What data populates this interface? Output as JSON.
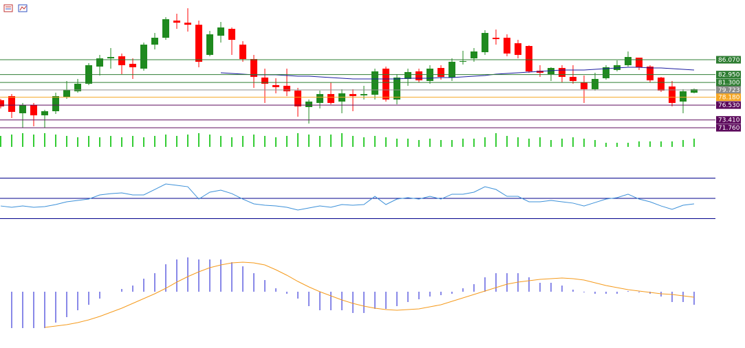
{
  "chart_data": [
    {
      "type": "candlestick",
      "up_color": "#1f8a1f",
      "down_color": "#ff0000",
      "ylim": [
        71.2,
        98.64
      ],
      "open": [
        77.55,
        78.42,
        74.81,
        76.54,
        74.38,
        75.24,
        78.28,
        79.43,
        81.02,
        84.63,
        86.36,
        86.8,
        85.21,
        84.2,
        89.25,
        90.7,
        94.31,
        93.87,
        93.44,
        87.09,
        91.13,
        92.57,
        89.25,
        86.22,
        82.32,
        80.73,
        80.59,
        79.58,
        76.11,
        76.98,
        78.85,
        77.27,
        78.85,
        78.57,
        78.71,
        84.2,
        77.7,
        82.03,
        83.62,
        81.6,
        84.34,
        82.32,
        85.64,
        86.36,
        87.66,
        90.7,
        90.7,
        89.54,
        88.96,
        83.76,
        83.04,
        84.34,
        82.46,
        81.31,
        79.87,
        82.18,
        83.91,
        84.92,
        86.51,
        84.63,
        82.32,
        80.44,
        77.27,
        79.14
      ],
      "high": [
        77.84,
        78.85,
        76.98,
        76.98,
        75.53,
        79.14,
        81.6,
        82.03,
        85.35,
        87.09,
        88.53,
        87.38,
        86.36,
        89.69,
        91.71,
        95.03,
        95.75,
        96.91,
        94.31,
        92.14,
        94.02,
        92.86,
        89.97,
        87.09,
        84.2,
        82.18,
        84.2,
        80.15,
        77.7,
        79.58,
        81.31,
        79.87,
        79.87,
        80.59,
        84.2,
        84.63,
        83.04,
        84.2,
        84.2,
        84.92,
        84.92,
        86.36,
        87.95,
        88.53,
        92.29,
        92.43,
        91.42,
        90.26,
        89.11,
        84.92,
        84.49,
        84.92,
        84.92,
        82.75,
        83.33,
        84.92,
        85.93,
        87.81,
        86.51,
        84.92,
        82.46,
        81.6,
        79.87,
        80.01
      ],
      "low": [
        75.82,
        73.8,
        71.78,
        72.07,
        71.78,
        74.67,
        77.84,
        79.14,
        80.73,
        82.75,
        84.2,
        83.04,
        82.03,
        83.76,
        88.24,
        90.26,
        92.57,
        92.0,
        84.49,
        86.8,
        89.69,
        87.09,
        85.64,
        80.15,
        76.98,
        79.0,
        78.42,
        74.09,
        72.64,
        75.82,
        76.69,
        74.81,
        75.24,
        77.7,
        77.7,
        77.27,
        76.69,
        80.59,
        81.31,
        81.02,
        81.89,
        81.6,
        85.06,
        85.64,
        87.09,
        89.25,
        86.8,
        86.36,
        83.33,
        82.46,
        81.6,
        81.31,
        81.02,
        76.98,
        79.58,
        81.89,
        83.62,
        84.63,
        83.91,
        81.31,
        79.29,
        76.25,
        74.81,
        79.0
      ],
      "close": [
        76.25,
        75.1,
        76.54,
        74.38,
        75.24,
        78.42,
        79.72,
        81.02,
        84.92,
        86.36,
        86.65,
        84.92,
        84.49,
        89.25,
        90.7,
        94.6,
        93.87,
        93.44,
        85.64,
        91.42,
        92.86,
        90.26,
        86.22,
        82.46,
        81.02,
        80.3,
        79.43,
        76.25,
        77.27,
        78.85,
        76.98,
        79.0,
        78.42,
        78.85,
        83.62,
        77.7,
        82.32,
        83.48,
        81.74,
        84.2,
        82.46,
        85.64,
        85.79,
        87.81,
        91.71,
        90.41,
        87.38,
        87.09,
        83.62,
        83.33,
        84.34,
        82.46,
        81.6,
        79.87,
        82.03,
        84.49,
        84.92,
        86.65,
        84.49,
        81.74,
        79.58,
        76.98,
        79.43,
        79.87
      ],
      "ma": {
        "color": "#1a1aa0",
        "values": [
          null,
          null,
          null,
          null,
          null,
          null,
          null,
          null,
          null,
          null,
          null,
          null,
          null,
          null,
          null,
          null,
          null,
          null,
          null,
          null,
          83.33,
          83.19,
          83.04,
          82.9,
          82.9,
          82.9,
          82.75,
          82.61,
          82.61,
          82.46,
          82.32,
          82.18,
          82.03,
          82.03,
          82.03,
          82.03,
          82.03,
          82.18,
          82.18,
          82.18,
          82.32,
          82.32,
          82.46,
          82.61,
          82.75,
          83.04,
          83.19,
          83.33,
          83.48,
          83.62,
          83.76,
          83.91,
          83.91,
          83.91,
          84.05,
          84.2,
          84.34,
          84.49,
          84.49,
          84.34,
          84.34,
          84.2,
          84.05,
          83.91
        ]
      },
      "levels": [
        {
          "value": 86.07,
          "label": "86.070",
          "color": "#2e7d32"
        },
        {
          "value": 82.95,
          "label": "82.950",
          "color": "#2e7d32"
        },
        {
          "value": 81.3,
          "label": "81.300",
          "color": "#2e7d32"
        },
        {
          "value": 79.723,
          "label": "79.723",
          "color": "#8c8c8c"
        },
        {
          "value": 78.18,
          "label": "78.180",
          "color": "#f5a623"
        },
        {
          "value": 76.53,
          "label": "76.530",
          "color": "#5c0a5c"
        },
        {
          "value": 73.41,
          "label": "73.410",
          "color": "#5c0a5c"
        },
        {
          "value": 71.76,
          "label": "71.760",
          "color": "#5c0a5c"
        }
      ]
    },
    {
      "type": "bar",
      "color": "#33cc33",
      "ylim": [
        0,
        20
      ],
      "values": [
        16,
        18,
        20,
        18,
        20,
        18,
        16,
        14,
        16,
        14,
        16,
        14,
        16,
        14,
        16,
        18,
        16,
        18,
        20,
        18,
        16,
        14,
        16,
        18,
        16,
        14,
        16,
        20,
        18,
        16,
        18,
        20,
        16,
        14,
        16,
        14,
        12,
        12,
        10,
        12,
        10,
        10,
        12,
        12,
        14,
        20,
        16,
        14,
        12,
        14,
        10,
        12,
        14,
        12,
        10,
        6,
        6,
        6,
        8,
        8,
        8,
        8,
        10,
        12
      ]
    },
    {
      "type": "line",
      "color": "#3a8fd8",
      "ylim": [
        10,
        90
      ],
      "levels": [
        70,
        50,
        30
      ],
      "level_color": "#00008b",
      "values": [
        42.5,
        41.2,
        42.5,
        41.2,
        41.9,
        43.9,
        46.6,
        48.0,
        49.3,
        53.4,
        54.7,
        55.4,
        53.4,
        53.4,
        58.8,
        64.2,
        62.9,
        61.5,
        49.3,
        56.1,
        58.1,
        54.7,
        49.3,
        44.6,
        43.2,
        42.5,
        41.2,
        38.5,
        40.5,
        42.5,
        41.2,
        43.9,
        43.2,
        43.9,
        52.0,
        43.9,
        49.3,
        50.7,
        49.3,
        52.0,
        49.3,
        54.1,
        54.1,
        56.1,
        61.5,
        58.8,
        52.0,
        52.0,
        46.6,
        46.6,
        48.0,
        46.6,
        45.3,
        42.5,
        45.9,
        49.3,
        50.7,
        54.1,
        49.3,
        46.6,
        42.5,
        39.2,
        43.2,
        44.6
      ]
    },
    {
      "type": "macd",
      "color": "#1010d0",
      "ylim": [
        -1.5,
        1.5
      ],
      "values": [
        null,
        -1.06,
        -1.06,
        -1.06,
        -1.06,
        -0.9,
        -0.74,
        -0.54,
        -0.38,
        -0.2,
        0,
        0.08,
        0.18,
        0.38,
        0.54,
        0.8,
        0.94,
        1.0,
        0.94,
        0.94,
        0.94,
        0.86,
        0.74,
        0.54,
        0.34,
        0.1,
        -0.06,
        -0.2,
        -0.42,
        -0.54,
        -0.54,
        -0.54,
        -0.62,
        -0.62,
        -0.5,
        -0.5,
        -0.42,
        -0.3,
        -0.22,
        -0.14,
        -0.1,
        -0.06,
        0.1,
        0.22,
        0.42,
        0.54,
        0.54,
        0.54,
        0.42,
        0.26,
        0.26,
        0.18,
        0.06,
        -0.02,
        -0.06,
        -0.06,
        -0.06,
        0.02,
        -0.02,
        -0.06,
        -0.14,
        -0.3,
        -0.3,
        -0.38
      ],
      "signal": {
        "color": "#f59a1b",
        "values": [
          null,
          null,
          null,
          null,
          -1.04,
          -1.0,
          -0.96,
          -0.9,
          -0.82,
          -0.72,
          -0.6,
          -0.48,
          -0.34,
          -0.2,
          -0.06,
          0.1,
          0.28,
          0.44,
          0.58,
          0.7,
          0.78,
          0.84,
          0.86,
          0.84,
          0.78,
          0.64,
          0.48,
          0.3,
          0.14,
          0,
          -0.12,
          -0.24,
          -0.34,
          -0.42,
          -0.48,
          -0.52,
          -0.54,
          -0.52,
          -0.5,
          -0.44,
          -0.38,
          -0.28,
          -0.18,
          -0.08,
          0.02,
          0.12,
          0.22,
          0.28,
          0.32,
          0.36,
          0.38,
          0.4,
          0.38,
          0.34,
          0.26,
          0.18,
          0.12,
          0.06,
          0.02,
          -0.02,
          -0.06,
          -0.08,
          -0.12,
          -0.16
        ]
      }
    }
  ]
}
